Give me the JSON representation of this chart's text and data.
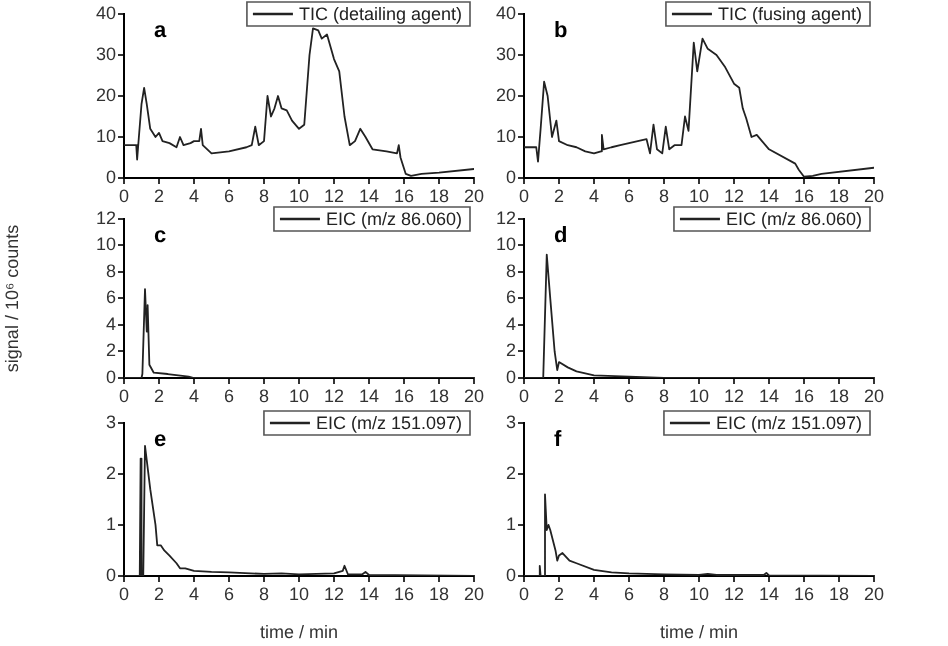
{
  "chart_data": [
    {
      "type": "line",
      "title": "a",
      "legend": "top right",
      "marker": "none",
      "xlim": [
        0,
        20
      ],
      "xticks": [
        0,
        2,
        4,
        6,
        8,
        10,
        12,
        14,
        16,
        18,
        20
      ],
      "ylim": [
        0,
        40
      ],
      "yticks": [
        0,
        10,
        20,
        30,
        40
      ],
      "x": [
        0,
        0.7,
        0.75,
        0.85,
        1.0,
        1.15,
        1.3,
        1.5,
        1.8,
        2.0,
        2.2,
        2.6,
        3.0,
        3.2,
        3.4,
        3.8,
        4.0,
        4.3,
        4.4,
        4.5,
        5.0,
        6,
        7,
        7.3,
        7.5,
        7.7,
        8.0,
        8.2,
        8.4,
        8.6,
        8.8,
        9.0,
        9.3,
        9.6,
        10.0,
        10.3,
        10.6,
        10.8,
        11.1,
        11.3,
        11.6,
        12.0,
        12.3,
        12.6,
        12.9,
        13.2,
        13.5,
        13.8,
        14.2,
        15.0,
        15.6,
        15.7,
        15.8,
        16.1,
        16.4,
        17,
        18,
        20
      ],
      "series": [
        {
          "name": "TIC (detailing agent)",
          "color": "#222222",
          "values": [
            8,
            8,
            4.5,
            10,
            18,
            22,
            18,
            12,
            10,
            11,
            9,
            8.5,
            7.5,
            10,
            8,
            8.5,
            9,
            9,
            12,
            8,
            6,
            6.5,
            7.5,
            8,
            12.5,
            8,
            9,
            20,
            15,
            17,
            20,
            17,
            16.5,
            14,
            12,
            13,
            30,
            36.5,
            36,
            34,
            35,
            29,
            26,
            15,
            8,
            9,
            12,
            10,
            7,
            6.5,
            6,
            8,
            5,
            1,
            0.5,
            1,
            1.3,
            2.2
          ]
        }
      ]
    },
    {
      "type": "line",
      "title": "b",
      "legend": "top right",
      "marker": "none",
      "xlim": [
        0,
        20
      ],
      "xticks": [
        0,
        2,
        4,
        6,
        8,
        10,
        12,
        14,
        16,
        18,
        20
      ],
      "ylim": [
        0,
        40
      ],
      "yticks": [
        0,
        10,
        20,
        30,
        40
      ],
      "x": [
        0,
        0.7,
        0.8,
        0.95,
        1.15,
        1.35,
        1.6,
        1.85,
        2.0,
        2.5,
        3,
        3.5,
        4.0,
        4.4,
        4.45,
        4.55,
        5,
        5.5,
        6,
        7,
        7.2,
        7.4,
        7.6,
        7.9,
        8.1,
        8.3,
        8.6,
        9.0,
        9.2,
        9.4,
        9.7,
        9.9,
        10.2,
        10.5,
        11,
        11.5,
        12,
        12.3,
        12.5,
        12.7,
        13.0,
        13.3,
        13.6,
        14,
        15.5,
        15.7,
        16.0,
        16.5,
        17,
        20
      ],
      "series": [
        {
          "name": "TIC (fusing agent)",
          "color": "#222222",
          "values": [
            7.5,
            7.5,
            4,
            12,
            23.5,
            20,
            10,
            14,
            9,
            8,
            7.5,
            6.5,
            6,
            6.5,
            10.5,
            7,
            7.5,
            8,
            8.5,
            9.5,
            6,
            13,
            7,
            6,
            12.5,
            7,
            8,
            8,
            15,
            11.5,
            33,
            26,
            34,
            31.5,
            30,
            27,
            23,
            22,
            17,
            14.5,
            10,
            10.5,
            9,
            7,
            3.5,
            2,
            0.3,
            0.5,
            1,
            2.5
          ]
        }
      ]
    },
    {
      "type": "line",
      "title": "c",
      "ylabel": "signal / 10⁶ counts",
      "legend": "top right",
      "marker": "none",
      "xlim": [
        0,
        20
      ],
      "xticks": [
        0,
        2,
        4,
        6,
        8,
        10,
        12,
        14,
        16,
        18,
        20
      ],
      "ylim": [
        0,
        12
      ],
      "yticks": [
        0,
        2,
        4,
        6,
        8,
        10,
        12
      ],
      "x": [
        0,
        1.0,
        1.05,
        1.2,
        1.3,
        1.35,
        1.45,
        1.7,
        2.5,
        3.7,
        4,
        20
      ],
      "series": [
        {
          "name": "EIC (m/z 86.060)",
          "color": "#222222",
          "values": [
            0,
            0,
            0.3,
            6.7,
            3.5,
            5.5,
            1,
            0.4,
            0.3,
            0.1,
            0,
            0
          ]
        }
      ]
    },
    {
      "type": "line",
      "title": "d",
      "legend": "top right",
      "marker": "none",
      "xlim": [
        0,
        20
      ],
      "xticks": [
        0,
        2,
        4,
        6,
        8,
        10,
        12,
        14,
        16,
        18,
        20
      ],
      "ylim": [
        0,
        12
      ],
      "yticks": [
        0,
        2,
        4,
        6,
        8,
        10,
        12
      ],
      "x": [
        0,
        1.05,
        1.1,
        1.3,
        1.5,
        1.75,
        1.9,
        2.0,
        2.5,
        3,
        4,
        6,
        8,
        20
      ],
      "series": [
        {
          "name": "EIC (m/z 86.060)",
          "color": "#222222",
          "values": [
            0,
            0,
            0.1,
            9.3,
            6,
            2,
            0.6,
            1.2,
            0.8,
            0.5,
            0.2,
            0.1,
            0,
            0
          ]
        }
      ]
    },
    {
      "type": "line",
      "title": "e",
      "xlabel": "time / min",
      "legend": "top right",
      "marker": "none",
      "xlim": [
        0,
        20
      ],
      "xticks": [
        0,
        2,
        4,
        6,
        8,
        10,
        12,
        14,
        16,
        18,
        20
      ],
      "ylim": [
        0,
        3
      ],
      "yticks": [
        0,
        1,
        2,
        3
      ],
      "x": [
        0,
        0.9,
        0.95,
        1.0,
        1.1,
        1.2,
        1.5,
        1.8,
        1.9,
        2.1,
        2.3,
        2.6,
        3.0,
        3.2,
        3.5,
        4,
        5,
        6,
        8,
        9,
        10,
        12,
        12.5,
        12.6,
        12.8,
        13.6,
        13.8,
        14,
        20
      ],
      "series": [
        {
          "name": "EIC (m/z 151.097)",
          "color": "#222222",
          "values": [
            0,
            0,
            2.3,
            0,
            0,
            2.55,
            1.7,
            1.0,
            0.6,
            0.6,
            0.5,
            0.4,
            0.25,
            0.15,
            0.15,
            0.1,
            0.08,
            0.07,
            0.04,
            0.05,
            0.03,
            0.05,
            0.1,
            0.2,
            0.03,
            0.03,
            0.08,
            0.02,
            0
          ]
        }
      ]
    },
    {
      "type": "line",
      "title": "f",
      "xlabel": "time / min",
      "legend": "top right",
      "marker": "none",
      "xlim": [
        0,
        20
      ],
      "xticks": [
        0,
        2,
        4,
        6,
        8,
        10,
        12,
        14,
        16,
        18,
        20
      ],
      "ylim": [
        0,
        3
      ],
      "yticks": [
        0,
        1,
        2,
        3
      ],
      "x": [
        0,
        0.85,
        0.9,
        0.95,
        1.15,
        1.2,
        1.3,
        1.4,
        1.5,
        1.8,
        1.9,
        2.0,
        2.2,
        2.6,
        3,
        4,
        5,
        6,
        8,
        10,
        10.5,
        11,
        13.7,
        13.85,
        14,
        20
      ],
      "series": [
        {
          "name": "EIC (m/z 151.097)",
          "color": "#222222",
          "values": [
            0,
            0,
            0.2,
            0,
            0,
            1.6,
            0.9,
            1.0,
            0.9,
            0.5,
            0.3,
            0.4,
            0.45,
            0.3,
            0.25,
            0.12,
            0.07,
            0.05,
            0.03,
            0.02,
            0.04,
            0.02,
            0.02,
            0.06,
            0.01,
            0
          ]
        }
      ]
    }
  ]
}
